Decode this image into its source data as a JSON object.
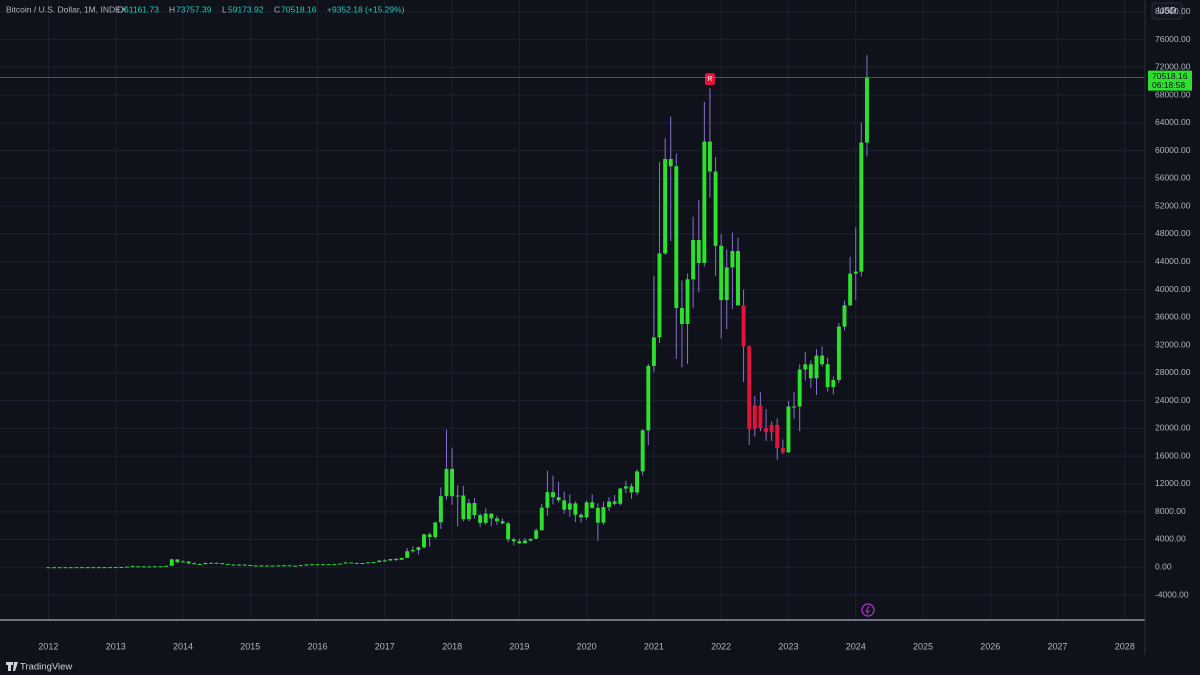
{
  "header": {
    "symbol": "Bitcoin / U.S. Dollar, 1M, INDEX",
    "open_prefix": "O",
    "open": "61161.73",
    "high_prefix": "H",
    "high": "73757.39",
    "low_prefix": "L",
    "low": "59173.92",
    "close_prefix": "C",
    "close": "70518.16",
    "change": "+9352.18 (+15.29%)",
    "currency": "USD",
    "countdown": "06:18:58",
    "brand": "TradingView"
  },
  "chart_data": {
    "type": "candlestick",
    "signal_label": "R",
    "palette": {
      "g": "#2ee02e",
      "r": "#e5123b"
    },
    "xlim": [
      2011.28,
      2028.3
    ],
    "xticks": [
      2012,
      2013,
      2014,
      2015,
      2016,
      2017,
      2018,
      2019,
      2020,
      2021,
      2022,
      2023,
      2024,
      2025,
      2026,
      2027,
      2028
    ],
    "ylim": [
      -7600,
      81700
    ],
    "yticks": [
      {
        "value": -4000,
        "label": "-4000.00"
      },
      {
        "value": 0,
        "label": "0.00"
      },
      {
        "value": 4000,
        "label": "4000.00"
      },
      {
        "value": 8000,
        "label": "8000.00"
      },
      {
        "value": 12000,
        "label": "12000.00"
      },
      {
        "value": 16000,
        "label": "16000.00"
      },
      {
        "value": 20000,
        "label": "20000.00"
      },
      {
        "value": 24000,
        "label": "24000.00"
      },
      {
        "value": 28000,
        "label": "28000.00"
      },
      {
        "value": 32000,
        "label": "32000.00"
      },
      {
        "value": 36000,
        "label": "36000.00"
      },
      {
        "value": 40000,
        "label": "40000.00"
      },
      {
        "value": 44000,
        "label": "44000.00"
      },
      {
        "value": 48000,
        "label": "48000.00"
      },
      {
        "value": 52000,
        "label": "52000.00"
      },
      {
        "value": 56000,
        "label": "56000.00"
      },
      {
        "value": 60000,
        "label": "60000.00"
      },
      {
        "value": 64000,
        "label": "64000.00"
      },
      {
        "value": 68000,
        "label": "68000.00"
      },
      {
        "value": 72000,
        "label": "72000.00"
      },
      {
        "value": 76000,
        "label": "76000.00"
      },
      {
        "value": 80000,
        "label": "80000.00"
      }
    ],
    "last_price": 70518.16,
    "last_price_label": "70518.16",
    "x": [
      2012,
      2012.083,
      2012.167,
      2012.25,
      2012.333,
      2012.417,
      2012.5,
      2012.583,
      2012.667,
      2012.75,
      2012.833,
      2012.917,
      2013,
      2013.083,
      2013.167,
      2013.25,
      2013.333,
      2013.417,
      2013.5,
      2013.583,
      2013.667,
      2013.75,
      2013.833,
      2013.917,
      2014,
      2014.083,
      2014.167,
      2014.25,
      2014.333,
      2014.417,
      2014.5,
      2014.583,
      2014.667,
      2014.75,
      2014.833,
      2014.917,
      2015,
      2015.083,
      2015.167,
      2015.25,
      2015.333,
      2015.417,
      2015.5,
      2015.583,
      2015.667,
      2015.75,
      2015.833,
      2015.917,
      2016,
      2016.083,
      2016.167,
      2016.25,
      2016.333,
      2016.417,
      2016.5,
      2016.583,
      2016.667,
      2016.75,
      2016.833,
      2016.917,
      2017,
      2017.083,
      2017.167,
      2017.25,
      2017.333,
      2017.417,
      2017.5,
      2017.583,
      2017.667,
      2017.75,
      2017.833,
      2017.917,
      2018,
      2018.083,
      2018.167,
      2018.25,
      2018.333,
      2018.417,
      2018.5,
      2018.583,
      2018.667,
      2018.75,
      2018.833,
      2018.917,
      2019,
      2019.083,
      2019.167,
      2019.25,
      2019.333,
      2019.417,
      2019.5,
      2019.583,
      2019.667,
      2019.75,
      2019.833,
      2019.917,
      2020,
      2020.083,
      2020.167,
      2020.25,
      2020.333,
      2020.417,
      2020.5,
      2020.583,
      2020.667,
      2020.75,
      2020.833,
      2020.917,
      2021,
      2021.083,
      2021.167,
      2021.25,
      2021.333,
      2021.417,
      2021.5,
      2021.583,
      2021.667,
      2021.75,
      2021.833,
      2021.917,
      2022,
      2022.083,
      2022.167,
      2022.25,
      2022.333,
      2022.417,
      2022.5,
      2022.583,
      2022.667,
      2022.75,
      2022.833,
      2022.917,
      2023,
      2023.083,
      2023.167,
      2023.25,
      2023.333,
      2023.417,
      2023.5,
      2023.583,
      2023.667,
      2023.75,
      2023.833,
      2023.917,
      2024,
      2024.083,
      2024.167
    ],
    "ohlc": [
      [
        5,
        7,
        4,
        5.5
      ],
      [
        5.5,
        6.5,
        4.3,
        4.9
      ],
      [
        4.9,
        5.5,
        4.6,
        4.9
      ],
      [
        4.9,
        5.3,
        4.7,
        5
      ],
      [
        5,
        5.2,
        4.9,
        5.1
      ],
      [
        5.1,
        6.7,
        5,
        6.7
      ],
      [
        6.7,
        9.4,
        6.5,
        9.3
      ],
      [
        9.3,
        16,
        7.1,
        10.2
      ],
      [
        10.2,
        12.6,
        9.9,
        12.4
      ],
      [
        12.4,
        12.8,
        10,
        11.2
      ],
      [
        11.2,
        12.9,
        10.5,
        12.6
      ],
      [
        12.6,
        14,
        12.3,
        13.5
      ],
      [
        13.5,
        21,
        13,
        20.4
      ],
      [
        20.4,
        34,
        19.5,
        33.4
      ],
      [
        33.4,
        95,
        33,
        93
      ],
      [
        93,
        266,
        50,
        139
      ],
      [
        139,
        140,
        80,
        129
      ],
      [
        129,
        130,
        90,
        97
      ],
      [
        97,
        111,
        65,
        106
      ],
      [
        106,
        142,
        102,
        141
      ],
      [
        141,
        145,
        120,
        141
      ],
      [
        141,
        220,
        120,
        204
      ],
      [
        204,
        1242,
        200,
        1129
      ],
      [
        1129,
        1165,
        520,
        732
      ],
      [
        732,
        1000,
        730,
        829
      ],
      [
        829,
        840,
        420,
        573
      ],
      [
        573,
        710,
        440,
        458
      ],
      [
        458,
        550,
        340,
        448
      ],
      [
        448,
        630,
        440,
        628
      ],
      [
        628,
        680,
        550,
        640
      ],
      [
        640,
        660,
        570,
        583
      ],
      [
        583,
        600,
        440,
        480
      ],
      [
        480,
        500,
        380,
        389
      ],
      [
        389,
        420,
        280,
        338
      ],
      [
        338,
        460,
        320,
        378
      ],
      [
        378,
        410,
        310,
        320
      ],
      [
        320,
        320,
        170,
        218
      ],
      [
        218,
        260,
        210,
        254
      ],
      [
        254,
        300,
        240,
        244
      ],
      [
        244,
        260,
        215,
        236
      ],
      [
        236,
        250,
        225,
        230
      ],
      [
        230,
        270,
        220,
        263
      ],
      [
        263,
        320,
        250,
        284
      ],
      [
        284,
        290,
        200,
        230
      ],
      [
        230,
        250,
        225,
        236
      ],
      [
        236,
        330,
        235,
        314
      ],
      [
        314,
        500,
        300,
        377
      ],
      [
        377,
        470,
        350,
        430
      ],
      [
        430,
        460,
        350,
        368
      ],
      [
        368,
        445,
        360,
        437
      ],
      [
        437,
        440,
        400,
        416
      ],
      [
        416,
        470,
        410,
        448
      ],
      [
        448,
        550,
        440,
        531
      ],
      [
        531,
        780,
        520,
        673
      ],
      [
        673,
        680,
        600,
        624
      ],
      [
        624,
        630,
        500,
        575
      ],
      [
        575,
        620,
        570,
        609
      ],
      [
        609,
        740,
        600,
        698
      ],
      [
        698,
        760,
        690,
        742
      ],
      [
        742,
        980,
        740,
        963
      ],
      [
        963,
        1150,
        780,
        970
      ],
      [
        970,
        1200,
        920,
        1190
      ],
      [
        1190,
        1300,
        890,
        1071
      ],
      [
        1071,
        1350,
        1060,
        1348
      ],
      [
        1348,
        2760,
        1340,
        2300
      ],
      [
        2300,
        3000,
        2100,
        2480
      ],
      [
        2480,
        2950,
        1830,
        2875
      ],
      [
        2875,
        4750,
        2700,
        4735
      ],
      [
        4735,
        4980,
        2980,
        4338
      ],
      [
        4338,
        6470,
        4100,
        6468
      ],
      [
        6468,
        11500,
        5500,
        10233
      ],
      [
        10233,
        19800,
        9700,
        14157
      ],
      [
        14157,
        17200,
        9000,
        10221
      ],
      [
        10221,
        11800,
        5900,
        10326
      ],
      [
        10326,
        11700,
        6600,
        6923
      ],
      [
        6923,
        9800,
        6600,
        9245
      ],
      [
        9245,
        9990,
        7000,
        7494
      ],
      [
        7494,
        7780,
        5780,
        6391
      ],
      [
        6391,
        8500,
        6100,
        7729
      ],
      [
        7729,
        7750,
        5880,
        7031
      ],
      [
        7031,
        7400,
        6100,
        6625
      ],
      [
        6625,
        7000,
        6200,
        6318
      ],
      [
        6318,
        6570,
        3600,
        4017
      ],
      [
        4017,
        4250,
        3150,
        3742
      ],
      [
        3742,
        4100,
        3350,
        3457
      ],
      [
        3457,
        4200,
        3400,
        3854
      ],
      [
        3854,
        4100,
        3700,
        4103
      ],
      [
        4103,
        5600,
        4050,
        5320
      ],
      [
        5320,
        9100,
        5300,
        8574
      ],
      [
        8574,
        13900,
        7450,
        10817
      ],
      [
        10817,
        13200,
        9050,
        10085
      ],
      [
        10085,
        12300,
        9300,
        9630
      ],
      [
        9630,
        10900,
        7700,
        8293
      ],
      [
        8293,
        10500,
        7300,
        9199
      ],
      [
        9199,
        9500,
        6500,
        7569
      ],
      [
        7569,
        7750,
        6430,
        7193
      ],
      [
        7193,
        9600,
        6850,
        9350
      ],
      [
        9350,
        10500,
        8450,
        8543
      ],
      [
        8543,
        9200,
        3800,
        6424
      ],
      [
        6424,
        9450,
        6150,
        8658
      ],
      [
        8658,
        10080,
        8100,
        9462
      ],
      [
        9462,
        10400,
        8900,
        9138
      ],
      [
        9138,
        11450,
        8900,
        11335
      ],
      [
        11335,
        12470,
        10650,
        11650
      ],
      [
        11650,
        12050,
        9850,
        10777
      ],
      [
        10777,
        14100,
        10400,
        13798
      ],
      [
        13798,
        19900,
        13200,
        19713
      ],
      [
        19713,
        29300,
        17600,
        28990
      ],
      [
        28990,
        41950,
        28100,
        33110
      ],
      [
        33110,
        58350,
        32300,
        45200
      ],
      [
        45200,
        61790,
        45000,
        58800
      ],
      [
        58800,
        64900,
        47000,
        57750
      ],
      [
        57750,
        59600,
        30000,
        37330
      ],
      [
        37330,
        41300,
        28800,
        35040
      ],
      [
        35040,
        42300,
        29300,
        41460
      ],
      [
        41460,
        50500,
        37300,
        47130
      ],
      [
        47130,
        52900,
        39600,
        43820
      ],
      [
        43820,
        67000,
        43300,
        61300
      ],
      [
        61300,
        69000,
        53250,
        57000
      ],
      [
        57000,
        59100,
        42000,
        46300
      ],
      [
        46300,
        47990,
        32900,
        38480
      ],
      [
        38480,
        45800,
        34300,
        43190
      ],
      [
        43190,
        48200,
        37200,
        45540
      ],
      [
        45540,
        47450,
        37700,
        37710
      ],
      [
        37710,
        40000,
        26700,
        31800
      ],
      [
        31800,
        31900,
        17600,
        19930
      ],
      [
        19930,
        24670,
        18800,
        23300
      ],
      [
        23300,
        25200,
        19600,
        20050
      ],
      [
        20050,
        22800,
        18200,
        19430
      ],
      [
        19430,
        21000,
        18200,
        20500
      ],
      [
        20500,
        21450,
        15500,
        17170
      ],
      [
        17170,
        18400,
        16300,
        16550
      ],
      [
        16550,
        23950,
        16500,
        23140
      ],
      [
        23140,
        25250,
        21400,
        23150
      ],
      [
        23150,
        29200,
        19600,
        28480
      ],
      [
        28480,
        31000,
        26900,
        29230
      ],
      [
        29230,
        29800,
        25800,
        27220
      ],
      [
        27220,
        31400,
        24800,
        30480
      ],
      [
        30480,
        31800,
        28900,
        29230
      ],
      [
        29230,
        30200,
        25300,
        25940
      ],
      [
        25940,
        27500,
        24900,
        26970
      ],
      [
        26970,
        35200,
        26550,
        34660
      ],
      [
        34660,
        38400,
        34100,
        37720
      ],
      [
        37720,
        44700,
        37600,
        42280
      ],
      [
        42280,
        48950,
        38500,
        42580
      ],
      [
        42580,
        64000,
        41900,
        61166
      ],
      [
        61161.73,
        73757.39,
        59173.92,
        70518.16
      ]
    ],
    "colors": [
      "g",
      "g",
      "g",
      "g",
      "g",
      "g",
      "g",
      "g",
      "g",
      "g",
      "g",
      "g",
      "g",
      "g",
      "g",
      "g",
      "g",
      "g",
      "g",
      "g",
      "g",
      "g",
      "g",
      "g",
      "g",
      "g",
      "g",
      "g",
      "g",
      "g",
      "g",
      "g",
      "g",
      "g",
      "g",
      "g",
      "g",
      "g",
      "g",
      "g",
      "g",
      "g",
      "g",
      "g",
      "g",
      "g",
      "g",
      "g",
      "g",
      "g",
      "g",
      "g",
      "g",
      "g",
      "g",
      "g",
      "g",
      "g",
      "g",
      "g",
      "g",
      "g",
      "g",
      "g",
      "g",
      "g",
      "g",
      "g",
      "g",
      "g",
      "g",
      "g",
      "g",
      "g",
      "g",
      "g",
      "g",
      "g",
      "g",
      "g",
      "g",
      "g",
      "g",
      "g",
      "g",
      "g",
      "g",
      "g",
      "g",
      "g",
      "g",
      "g",
      "g",
      "g",
      "g",
      "g",
      "g",
      "g",
      "g",
      "g",
      "g",
      "g",
      "g",
      "g",
      "g",
      "g",
      "g",
      "g",
      "g",
      "g",
      "g",
      "g",
      "g",
      "g",
      "g",
      "g",
      "g",
      "g",
      "g",
      "g",
      "g",
      "g",
      "g",
      "g",
      "r",
      "r",
      "r",
      "r",
      "r",
      "r",
      "r",
      "r",
      "g",
      "g",
      "g",
      "g",
      "g",
      "g",
      "g",
      "g",
      "g",
      "g",
      "g",
      "g",
      "g",
      "g",
      "g"
    ]
  }
}
